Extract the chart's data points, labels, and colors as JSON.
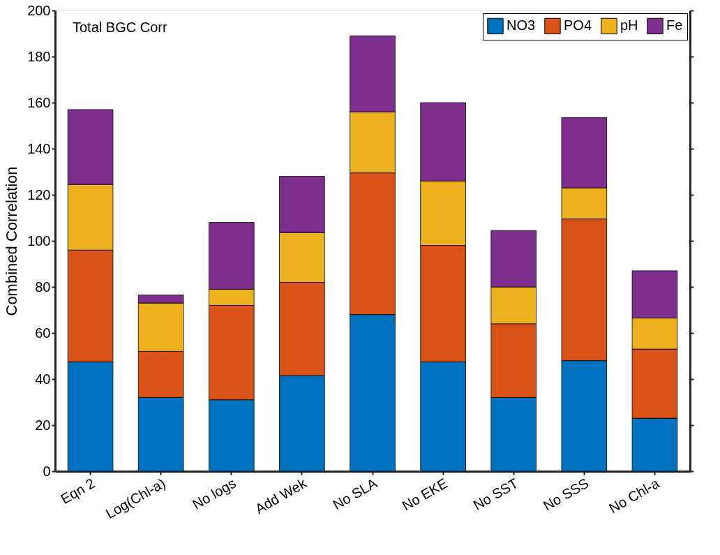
{
  "chart_data": {
    "type": "bar",
    "stacked": true,
    "title": "Total BGC Corr",
    "ylabel": "Combined Correlation",
    "categories": [
      "Eqn 2",
      "Log(Chl-a)",
      "No logs",
      "Add Wek",
      "No SLA",
      "No EKE",
      "No SST",
      "No SSS",
      "No Chl-a"
    ],
    "series": [
      {
        "name": "NO3",
        "color": "#0072bd",
        "values": [
          47.5,
          32,
          31,
          41.5,
          68,
          47.5,
          32,
          48,
          23
        ]
      },
      {
        "name": "PO4",
        "color": "#d95319",
        "values": [
          48.5,
          20,
          41,
          40.5,
          61.5,
          50.5,
          32,
          61.5,
          30
        ]
      },
      {
        "name": "pH",
        "color": "#edb120",
        "values": [
          28.5,
          21,
          7,
          21.5,
          26.5,
          28,
          16,
          13.5,
          13.5
        ]
      },
      {
        "name": "Fe",
        "color": "#7e2f8e",
        "values": [
          32.5,
          3.5,
          29,
          24.5,
          33,
          34,
          24.5,
          30.5,
          20.5
        ]
      }
    ],
    "ylim": [
      0,
      200
    ],
    "yticks": [
      0,
      20,
      40,
      60,
      80,
      100,
      120,
      140,
      160,
      180,
      200
    ],
    "legend": "top right",
    "grid": false
  }
}
